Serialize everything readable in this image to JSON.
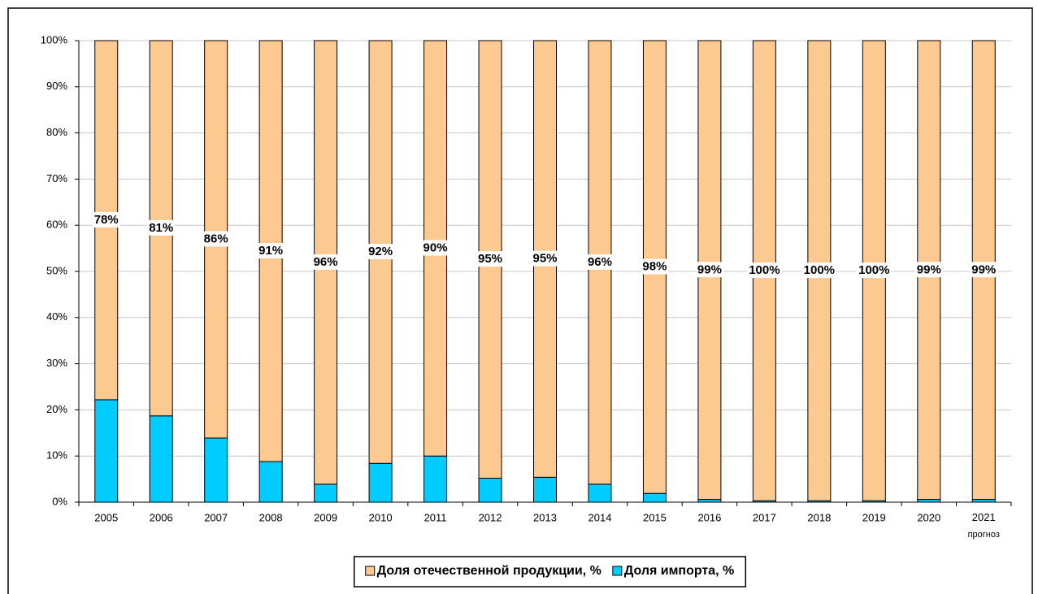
{
  "chart_data": {
    "type": "stacked_bar",
    "categories": [
      "2005",
      "2006",
      "2007",
      "2008",
      "2009",
      "2010",
      "2011",
      "2012",
      "2013",
      "2014",
      "2015",
      "2016",
      "2017",
      "2018",
      "2019",
      "2020",
      "2021\nпрогноз"
    ],
    "series": [
      {
        "name": "Доля импорта, %",
        "color": "#00ccff",
        "values": [
          22.2,
          18.7,
          13.9,
          8.8,
          3.9,
          8.4,
          10,
          5.2,
          5.4,
          3.9,
          1.9,
          0.6,
          0.3,
          0.3,
          0.3,
          0.6,
          0.6
        ]
      },
      {
        "name": "Доля отечественной продукции, %",
        "color": "#fcc990",
        "values": [
          77.8,
          81.3,
          86.1,
          91.2,
          96.1,
          91.6,
          90,
          94.8,
          94.6,
          96.1,
          98.1,
          99.4,
          99.7,
          99.7,
          99.7,
          99.4,
          99.4
        ],
        "value_labels": [
          "78%",
          "81%",
          "86%",
          "91%",
          "96%",
          "92%",
          "90%",
          "95%",
          "95%",
          "96%",
          "98%",
          "99%",
          "100%",
          "100%",
          "100%",
          "99%",
          "99%"
        ]
      }
    ],
    "ylim": [
      0,
      100
    ],
    "yticks": [
      {
        "value": 0,
        "label": "0%"
      },
      {
        "value": 10,
        "label": "10%"
      },
      {
        "value": 20,
        "label": "20%"
      },
      {
        "value": 30,
        "label": "30%"
      },
      {
        "value": 40,
        "label": "40%"
      },
      {
        "value": 50,
        "label": "50%"
      },
      {
        "value": 60,
        "label": "60%"
      },
      {
        "value": 70,
        "label": "70%"
      },
      {
        "value": 80,
        "label": "80%"
      },
      {
        "value": 90,
        "label": "90%"
      },
      {
        "value": 100,
        "label": "100%"
      }
    ],
    "grid": true,
    "legend": "bottom"
  }
}
